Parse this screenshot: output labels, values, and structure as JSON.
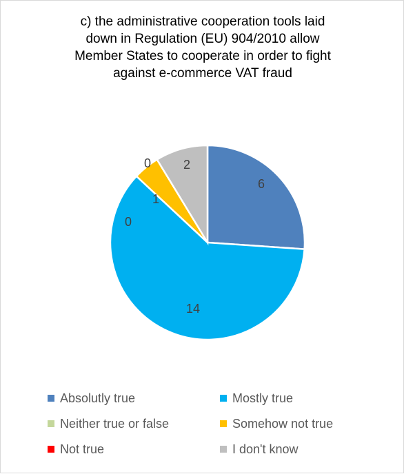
{
  "chart_data": {
    "type": "pie",
    "title_lines": [
      "c) the administrative cooperation tools laid",
      "down in Regulation (EU) 904/2010 allow",
      "Member States to cooperate in order to fight",
      "against e-commerce VAT fraud"
    ],
    "slices": [
      {
        "label": "Absolutly true",
        "value": 6,
        "color": "#4f81bd"
      },
      {
        "label": "Mostly true",
        "value": 14,
        "color": "#00b0f0"
      },
      {
        "label": "Neither true or false",
        "value": 0,
        "color": "#c4d79b"
      },
      {
        "label": "Somehow not true",
        "value": 1,
        "color": "#ffc000"
      },
      {
        "label": "Not true",
        "value": 0,
        "color": "#ff0000"
      },
      {
        "label": "I don't know",
        "value": 2,
        "color": "#bfbfbf"
      }
    ],
    "data_labels": [
      "6",
      "14",
      "0",
      "1",
      "0",
      "2"
    ],
    "legend_position": "bottom"
  }
}
